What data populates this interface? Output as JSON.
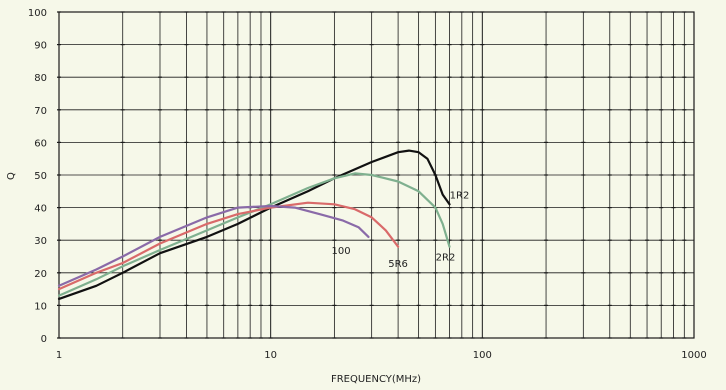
{
  "chart_data": {
    "type": "line",
    "title": "",
    "xlabel": "FREQUENCY(MHz)",
    "ylabel": "Q",
    "x_scale": "log",
    "xlim": [
      1,
      1000
    ],
    "ylim": [
      0,
      100
    ],
    "grid": true,
    "x_tick_labels": [
      "1",
      "10",
      "100",
      "1000"
    ],
    "y_tick_labels": [
      "0",
      "10",
      "20",
      "30",
      "40",
      "50",
      "60",
      "70",
      "80",
      "90",
      "100"
    ],
    "series": [
      {
        "name": "1R2",
        "color": "#111111",
        "points": [
          [
            1,
            12
          ],
          [
            1.5,
            16
          ],
          [
            2,
            20
          ],
          [
            3,
            26
          ],
          [
            5,
            31
          ],
          [
            7,
            35
          ],
          [
            10,
            40
          ],
          [
            15,
            45
          ],
          [
            20,
            49
          ],
          [
            30,
            54
          ],
          [
            40,
            57
          ],
          [
            45,
            57.5
          ],
          [
            50,
            57
          ],
          [
            55,
            55
          ],
          [
            60,
            50
          ],
          [
            65,
            44
          ],
          [
            70,
            41
          ]
        ]
      },
      {
        "name": "2R2",
        "color": "#7fb08f",
        "points": [
          [
            1,
            13
          ],
          [
            1.5,
            18
          ],
          [
            2,
            22
          ],
          [
            3,
            27
          ],
          [
            5,
            33
          ],
          [
            7,
            37
          ],
          [
            10,
            41
          ],
          [
            15,
            46
          ],
          [
            20,
            49
          ],
          [
            25,
            50.5
          ],
          [
            30,
            50
          ],
          [
            40,
            48
          ],
          [
            50,
            45
          ],
          [
            60,
            40
          ],
          [
            65,
            35
          ],
          [
            70,
            28
          ]
        ]
      },
      {
        "name": "5R6",
        "color": "#d96a6a",
        "points": [
          [
            1,
            15
          ],
          [
            1.5,
            20
          ],
          [
            2,
            23
          ],
          [
            3,
            29
          ],
          [
            5,
            35
          ],
          [
            7,
            38
          ],
          [
            10,
            40
          ],
          [
            15,
            41.5
          ],
          [
            20,
            41
          ],
          [
            25,
            39.5
          ],
          [
            30,
            37
          ],
          [
            35,
            33
          ],
          [
            40,
            28
          ]
        ]
      },
      {
        "name": "100",
        "color": "#8a6aa8",
        "points": [
          [
            1,
            16
          ],
          [
            1.5,
            21
          ],
          [
            2,
            25
          ],
          [
            3,
            31
          ],
          [
            5,
            37
          ],
          [
            7,
            40
          ],
          [
            10,
            40.5
          ],
          [
            13,
            40
          ],
          [
            17,
            38
          ],
          [
            22,
            36
          ],
          [
            26,
            34
          ],
          [
            29,
            31
          ]
        ]
      }
    ],
    "annotations": [
      {
        "text": "1R2",
        "x": 78,
        "y": 44
      },
      {
        "text": "2R2",
        "x": 67,
        "y": 25
      },
      {
        "text": "5R6",
        "x": 40,
        "y": 23
      },
      {
        "text": "100",
        "x": 21.5,
        "y": 27
      }
    ]
  }
}
